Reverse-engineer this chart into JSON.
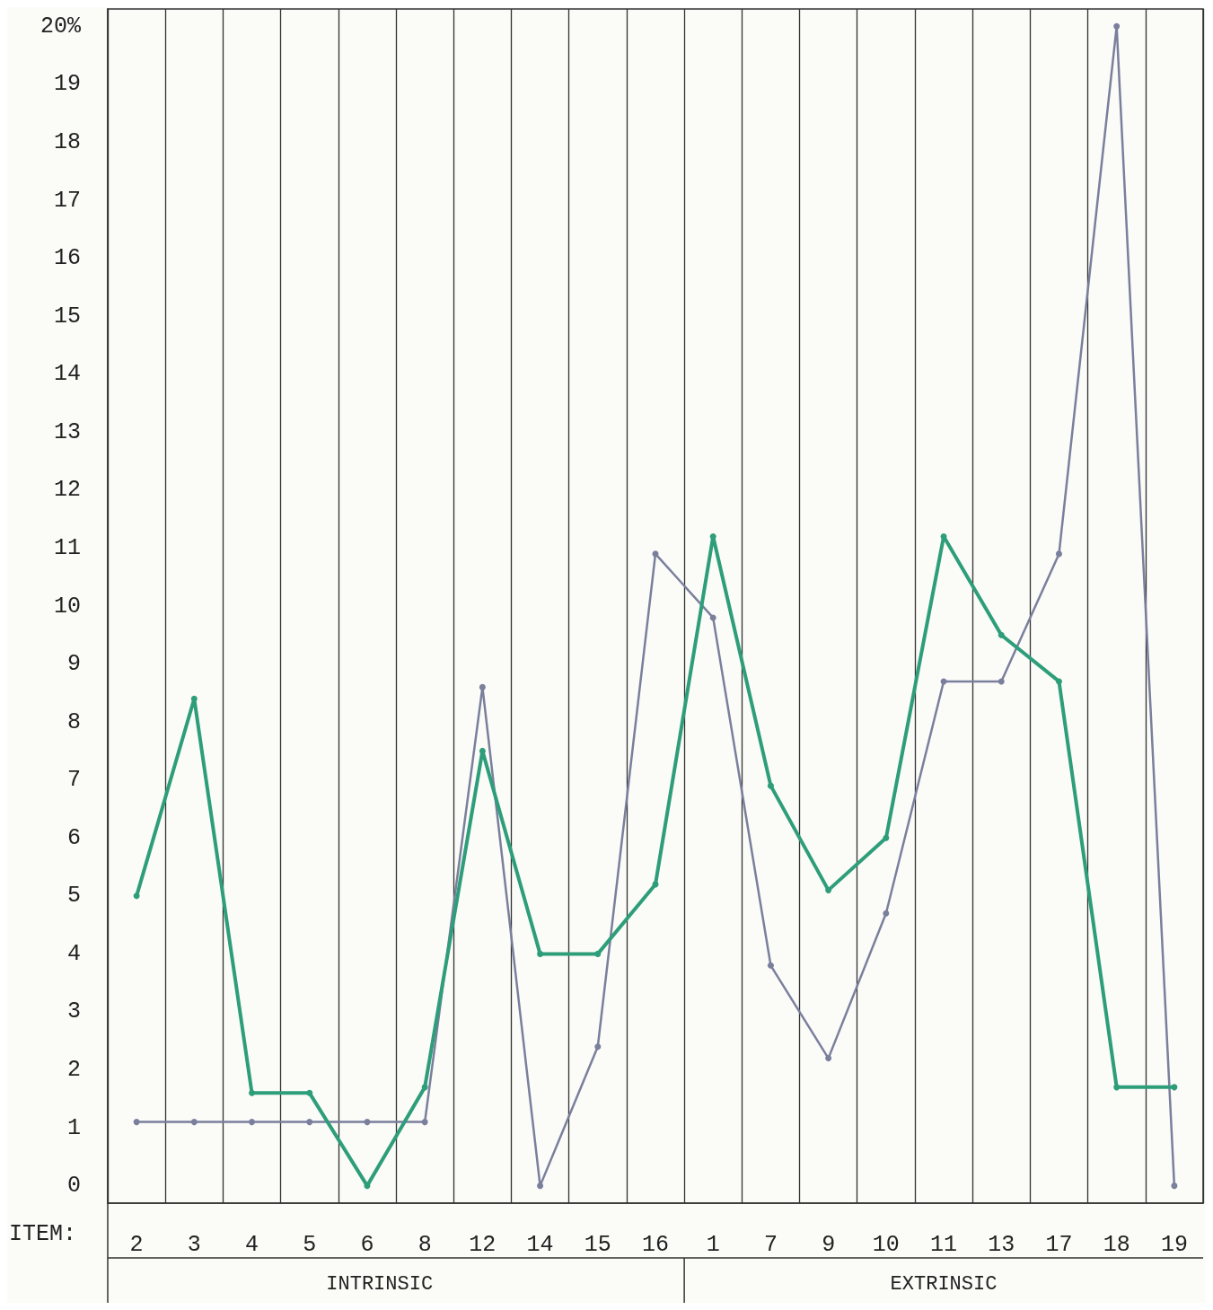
{
  "chart_data": {
    "type": "line",
    "xlabel": "ITEM:",
    "categories": [
      "2",
      "3",
      "4",
      "5",
      "6",
      "8",
      "12",
      "14",
      "15",
      "16",
      "1",
      "7",
      "9",
      "10",
      "11",
      "13",
      "17",
      "18",
      "19"
    ],
    "series": [
      {
        "color": "#2e9e7a",
        "values": [
          5,
          8.4,
          1.6,
          1.6,
          0,
          1.7,
          7.5,
          4,
          4,
          5.2,
          11.2,
          6.9,
          5.1,
          6,
          11.2,
          9.5,
          8.7,
          1.7,
          1.7
        ]
      },
      {
        "color": "#7a7f9c",
        "values": [
          1.1,
          1.1,
          1.1,
          1.1,
          1.1,
          1.1,
          8.6,
          0,
          2.4,
          10.9,
          9.8,
          3.8,
          2.2,
          4.7,
          8.7,
          8.7,
          10.9,
          20,
          0
        ]
      }
    ],
    "ylim": [
      -0.3,
      20.3
    ],
    "yticks": [
      0,
      1,
      2,
      3,
      4,
      5,
      6,
      7,
      8,
      9,
      10,
      11,
      12,
      13,
      14,
      15,
      16,
      17,
      18,
      19,
      {
        "value": 20,
        "label": "20%"
      }
    ],
    "grid": "x",
    "marker": "circle",
    "line_style": "solid",
    "annotations": [
      "INTRINSIC",
      "EXTRINSIC"
    ]
  }
}
